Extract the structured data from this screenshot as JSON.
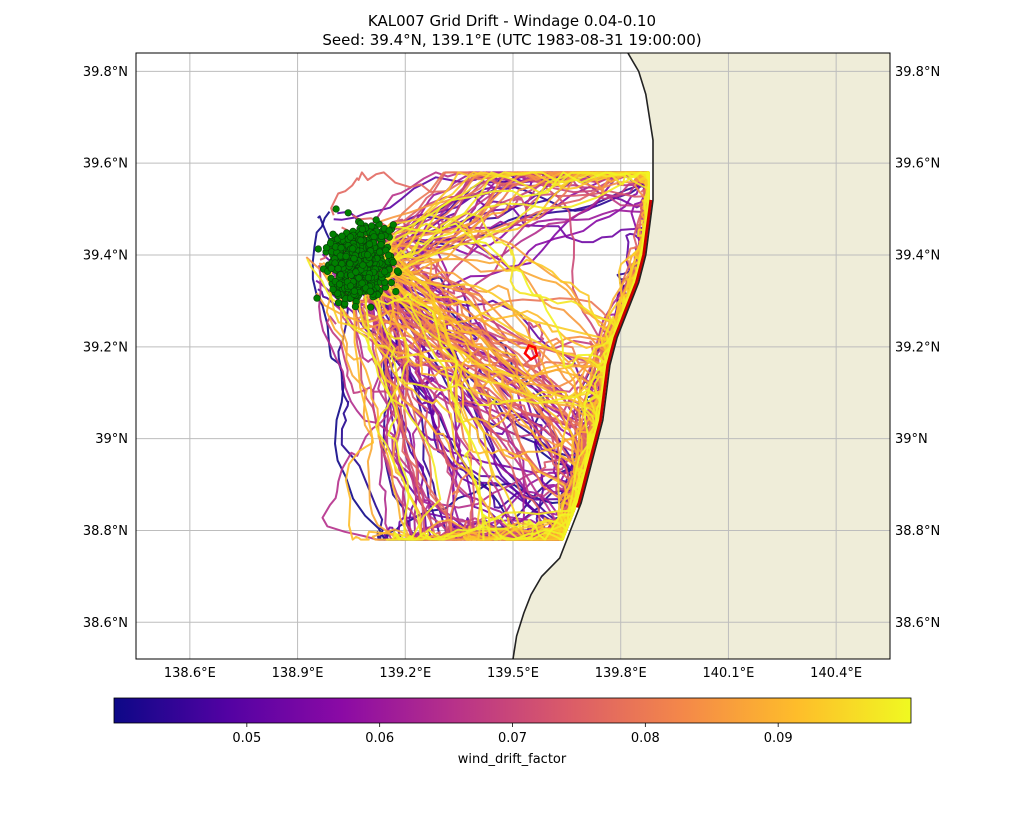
{
  "chart_data": {
    "type": "map-trajectories",
    "title_line1": "KAL007 Grid Drift - Windage 0.04-0.10",
    "title_line2": "Seed: 39.4°N, 139.1°E (UTC 1983-08-31 19:00:00)",
    "xlim": [
      138.45,
      140.55
    ],
    "ylim": [
      38.52,
      39.84
    ],
    "lon_ticks": [
      138.6,
      138.9,
      139.2,
      139.5,
      139.8,
      140.1,
      140.4
    ],
    "lon_tick_labels": [
      "138.6°E",
      "138.9°E",
      "139.2°E",
      "139.5°E",
      "139.8°E",
      "140.1°E",
      "140.4°E"
    ],
    "lat_ticks": [
      38.6,
      38.8,
      39.0,
      39.2,
      39.4,
      39.6,
      39.8
    ],
    "lat_tick_labels": [
      "38.6°N",
      "38.8°N",
      "39°N",
      "39.2°N",
      "39.4°N",
      "39.6°N",
      "39.8°N"
    ],
    "grid": true,
    "seed": {
      "lat": 39.4,
      "lon": 139.1
    },
    "seed_cluster": {
      "center_lon": 139.07,
      "center_lat": 39.38,
      "spread_lon": 0.07,
      "spread_lat": 0.07,
      "color": "#008000",
      "count": 700
    },
    "colorbar": {
      "label": "wind_drift_factor",
      "vmin": 0.04,
      "vmax": 0.1,
      "ticks": [
        0.05,
        0.06,
        0.07,
        0.08,
        0.09
      ],
      "tick_labels": [
        "0.05",
        "0.06",
        "0.07",
        "0.08",
        "0.09"
      ],
      "colormap": "plasma",
      "stops": [
        "#0d0887",
        "#5302a3",
        "#8b0aa5",
        "#b83289",
        "#db5c68",
        "#f48849",
        "#febd2a",
        "#f0f921"
      ]
    },
    "coastline": [
      [
        139.82,
        39.84
      ],
      [
        139.85,
        39.8
      ],
      [
        139.87,
        39.75
      ],
      [
        139.88,
        39.7
      ],
      [
        139.89,
        39.65
      ],
      [
        139.89,
        39.58
      ],
      [
        139.89,
        39.52
      ],
      [
        139.88,
        39.46
      ],
      [
        139.87,
        39.4
      ],
      [
        139.85,
        39.34
      ],
      [
        139.82,
        39.28
      ],
      [
        139.79,
        39.22
      ],
      [
        139.77,
        39.16
      ],
      [
        139.76,
        39.1
      ],
      [
        139.75,
        39.04
      ],
      [
        139.73,
        38.98
      ],
      [
        139.71,
        38.92
      ],
      [
        139.69,
        38.86
      ],
      [
        139.66,
        38.8
      ],
      [
        139.63,
        38.74
      ],
      [
        139.58,
        38.7
      ],
      [
        139.55,
        38.66
      ],
      [
        139.53,
        38.62
      ],
      [
        139.51,
        38.57
      ],
      [
        139.5,
        38.52
      ]
    ],
    "stranded_coast": {
      "lat_range": [
        38.85,
        39.52
      ],
      "color": "#cc0000"
    },
    "release_marker": {
      "lon": 139.55,
      "lat": 39.19,
      "color": "#ff0000"
    },
    "land_color": "#efedd9"
  }
}
